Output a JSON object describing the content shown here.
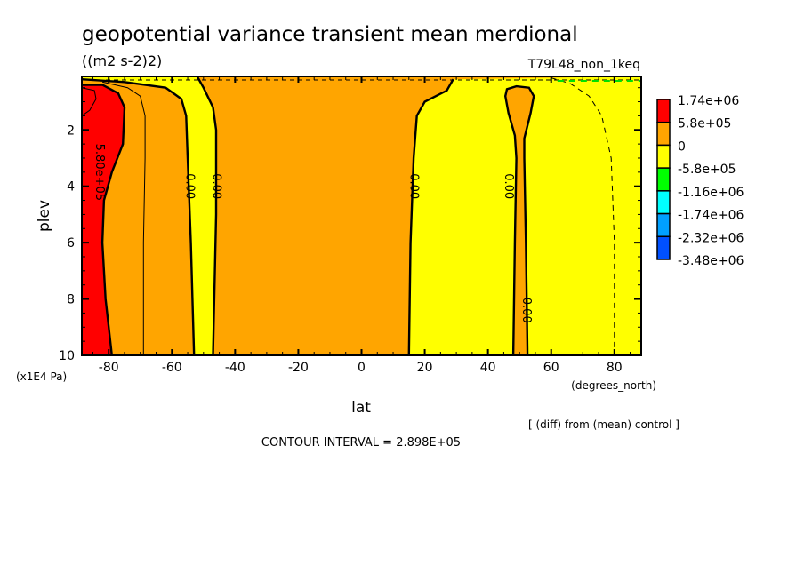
{
  "chart_data": {
    "type": "contour",
    "title": "geopotential variance transient mean merdional",
    "units": "((m2 s-2)2)",
    "experiment": "T79L48_non_1keq",
    "xlabel": "lat",
    "xunits": "(degrees_north)",
    "ylabel": "plev",
    "yunits": "(x1E4 Pa)",
    "xlim": [
      -88.5,
      88.5
    ],
    "ylim": [
      10,
      0.1
    ],
    "xticks": [
      -80,
      -60,
      -40,
      -20,
      0,
      20,
      40,
      60,
      80
    ],
    "yticks": [
      2,
      4,
      6,
      8,
      10
    ],
    "contour_interval_label": "CONTOUR INTERVAL = 2.898E+05",
    "note": "[ (diff) from (mean) control ]",
    "colorbar": {
      "labels": [
        "1.74e+06",
        "5.8e+05",
        "0",
        "-5.8e+05",
        "-1.16e+06",
        "-1.74e+06",
        "-2.32e+06",
        "-3.48e+06"
      ],
      "colors": [
        "#ff0000",
        "#ffa500",
        "#ffff00",
        "#00ff00",
        "#00ffff",
        "#00a0ff",
        "#0050ff"
      ]
    },
    "background_color": "#ffa500",
    "regions": [
      {
        "name": "yellow-right",
        "color": "#ffff00",
        "points": [
          [
            15,
            10
          ],
          [
            15.5,
            6
          ],
          [
            16.5,
            3
          ],
          [
            17.5,
            1.5
          ],
          [
            20,
            1.0
          ],
          [
            27,
            0.6
          ],
          [
            29,
            0.2
          ],
          [
            88.5,
            0.1
          ],
          [
            88.5,
            10
          ]
        ]
      },
      {
        "name": "orange-blob-right",
        "color": "#ffa500",
        "points": [
          [
            48,
            10
          ],
          [
            48.5,
            6
          ],
          [
            49,
            3
          ],
          [
            48.5,
            2.2
          ],
          [
            46.5,
            1.4
          ],
          [
            45.5,
            0.8
          ],
          [
            46,
            0.55
          ],
          [
            49,
            0.45
          ],
          [
            53,
            0.5
          ],
          [
            54.5,
            0.8
          ],
          [
            53.5,
            1.4
          ],
          [
            51.5,
            2.3
          ],
          [
            51.5,
            3
          ],
          [
            52,
            6
          ],
          [
            52.5,
            10
          ]
        ]
      },
      {
        "name": "yellow-left-band",
        "color": "#ffff00",
        "points": [
          [
            -53,
            10
          ],
          [
            -54,
            6
          ],
          [
            -55,
            3
          ],
          [
            -55.5,
            1.5
          ],
          [
            -57,
            0.9
          ],
          [
            -62,
            0.5
          ],
          [
            -75,
            0.3
          ],
          [
            -88.5,
            0.2
          ],
          [
            -88.5,
            0.1
          ],
          [
            -52,
            0.1
          ],
          [
            -50,
            0.5
          ],
          [
            -47,
            1.2
          ],
          [
            -46,
            2
          ],
          [
            -46,
            5
          ],
          [
            -47,
            10
          ]
        ]
      },
      {
        "name": "red-left",
        "color": "#ff0000",
        "points": [
          [
            -88.5,
            0.4
          ],
          [
            -82,
            0.4
          ],
          [
            -77,
            0.7
          ],
          [
            -75,
            1.2
          ],
          [
            -75.5,
            2.5
          ],
          [
            -79,
            3.5
          ],
          [
            -81.5,
            4.5
          ],
          [
            -82,
            6
          ],
          [
            -81,
            8
          ],
          [
            -79,
            10
          ],
          [
            -88.5,
            10
          ]
        ]
      }
    ],
    "contours": [
      {
        "name": "zero-line-left-a",
        "style": "solid",
        "points": [
          [
            -53,
            10
          ],
          [
            -54,
            6
          ],
          [
            -55,
            3
          ],
          [
            -55.5,
            1.5
          ],
          [
            -57,
            0.9
          ],
          [
            -62,
            0.5
          ],
          [
            -75,
            0.3
          ],
          [
            -88.5,
            0.2
          ]
        ]
      },
      {
        "name": "zero-line-left-b",
        "style": "solid",
        "points": [
          [
            -47,
            10
          ],
          [
            -46,
            5
          ],
          [
            -46,
            2
          ],
          [
            -47,
            1.2
          ],
          [
            -50,
            0.5
          ],
          [
            -52,
            0.1
          ]
        ]
      },
      {
        "name": "zero-line-center",
        "style": "solid",
        "points": [
          [
            15,
            10
          ],
          [
            15.5,
            6
          ],
          [
            16.5,
            3
          ],
          [
            17.5,
            1.5
          ],
          [
            20,
            1.0
          ],
          [
            27,
            0.6
          ],
          [
            29,
            0.2
          ]
        ]
      },
      {
        "name": "zero-line-blob",
        "style": "solid",
        "points": [
          [
            48,
            10
          ],
          [
            48.5,
            6
          ],
          [
            49,
            3
          ],
          [
            48.5,
            2.2
          ],
          [
            46.5,
            1.4
          ],
          [
            45.5,
            0.8
          ],
          [
            46,
            0.55
          ],
          [
            49,
            0.45
          ],
          [
            53,
            0.5
          ],
          [
            54.5,
            0.8
          ],
          [
            53.5,
            1.4
          ],
          [
            51.5,
            2.3
          ],
          [
            51.5,
            3
          ],
          [
            52,
            6
          ],
          [
            52.5,
            10
          ]
        ]
      },
      {
        "name": "contour-5.8e5",
        "style": "solid",
        "points": [
          [
            -88.5,
            0.4
          ],
          [
            -82,
            0.4
          ],
          [
            -77,
            0.7
          ],
          [
            -75,
            1.2
          ],
          [
            -75.5,
            2.5
          ],
          [
            -79,
            3.5
          ],
          [
            -81.5,
            4.5
          ],
          [
            -82,
            6
          ],
          [
            -81,
            8
          ],
          [
            -79,
            10
          ]
        ]
      },
      {
        "name": "contour-2.9e5",
        "style": "thin",
        "points": [
          [
            -69,
            10
          ],
          [
            -69,
            6
          ],
          [
            -68.5,
            3
          ],
          [
            -68.5,
            1.5
          ],
          [
            -70,
            0.8
          ],
          [
            -74,
            0.5
          ],
          [
            -82,
            0.3
          ]
        ]
      },
      {
        "name": "contour-inner-red",
        "style": "thin",
        "points": [
          [
            -88.5,
            1.5
          ],
          [
            -86,
            1.3
          ],
          [
            -84,
            0.9
          ],
          [
            -84.5,
            0.6
          ],
          [
            -88.5,
            0.5
          ]
        ]
      },
      {
        "name": "contour-neg-right",
        "style": "dashed",
        "points": [
          [
            60,
            0.15
          ],
          [
            66,
            0.35
          ],
          [
            72,
            0.8
          ],
          [
            76,
            1.5
          ],
          [
            79,
            3
          ],
          [
            80,
            6
          ],
          [
            80,
            10
          ]
        ]
      }
    ],
    "contour_labels": [
      {
        "text": "5.80e+05",
        "lat": -83,
        "plev": 3.5
      },
      {
        "text": "0.00",
        "lat": -54.5,
        "plev": 4
      },
      {
        "text": "0.00",
        "lat": -46,
        "plev": 4
      },
      {
        "text": "0.00",
        "lat": 16.5,
        "plev": 4
      },
      {
        "text": "0.00",
        "lat": 46.5,
        "plev": 4
      },
      {
        "text": "0.00",
        "lat": 52,
        "plev": 8.4
      }
    ]
  }
}
